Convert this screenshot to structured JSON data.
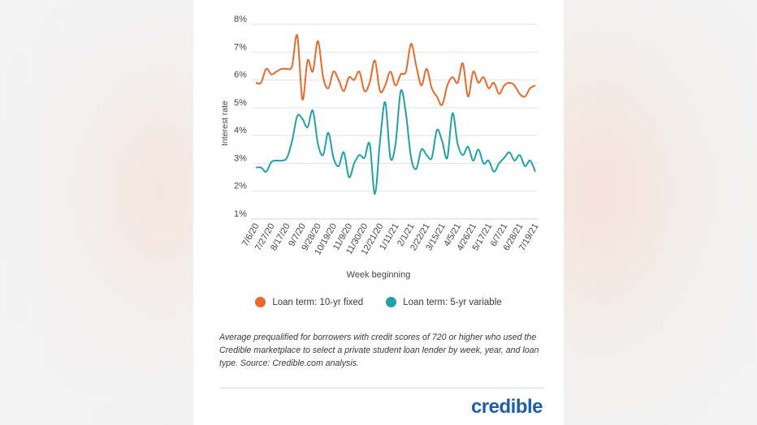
{
  "chart_data": {
    "type": "line",
    "title": "",
    "xlabel": "Week beginning",
    "ylabel": "Interest rate",
    "ylim": [
      1,
      8
    ],
    "yticks": [
      "1%",
      "2%",
      "3%",
      "4%",
      "5%",
      "6%",
      "7%",
      "8%"
    ],
    "grid": true,
    "legend_position": "bottom",
    "x": [
      "7/6/20",
      "7/13/20",
      "7/20/20",
      "7/27/20",
      "8/3/20",
      "8/10/20",
      "8/17/20",
      "8/24/20",
      "8/31/20",
      "9/7/20",
      "9/14/20",
      "9/21/20",
      "9/28/20",
      "10/5/20",
      "10/12/20",
      "10/19/20",
      "10/26/20",
      "11/2/20",
      "11/9/20",
      "11/16/20",
      "11/23/20",
      "11/30/20",
      "12/7/20",
      "12/14/20",
      "12/21/20",
      "12/28/20",
      "1/4/21",
      "1/11/21",
      "1/18/21",
      "1/25/21",
      "2/1/21",
      "2/8/21",
      "2/15/21",
      "2/22/21",
      "3/1/21",
      "3/8/21",
      "3/15/21",
      "3/22/21",
      "3/29/21",
      "4/5/21",
      "4/12/21",
      "4/19/21",
      "4/26/21",
      "5/3/21",
      "5/10/21",
      "5/17/21",
      "5/24/21",
      "5/31/21",
      "6/7/21",
      "6/14/21",
      "6/21/21",
      "6/28/21",
      "7/5/21",
      "7/12/21",
      "7/19/21"
    ],
    "x_tick_labels": [
      "7/6/20",
      "7/27/20",
      "8/17/20",
      "9/7/20",
      "9/28/20",
      "10/19/20",
      "11/9/20",
      "11/30/20",
      "12/21/20",
      "1/11/21",
      "2/1/21",
      "2/22/21",
      "3/15/21",
      "4/5/21",
      "4/26/21",
      "5/17/21",
      "6/7/21",
      "6/28/21",
      "7/19/21"
    ],
    "series": [
      {
        "name": "Loan term: 10-yr fixed",
        "color": "#e8692c",
        "values": [
          5.9,
          5.9,
          6.4,
          6.2,
          6.3,
          6.4,
          6.4,
          6.5,
          7.6,
          5.3,
          6.7,
          6.3,
          7.4,
          6.1,
          5.7,
          6.3,
          6.0,
          5.6,
          6.1,
          6.0,
          6.3,
          5.6,
          5.9,
          6.7,
          5.6,
          5.8,
          6.3,
          5.8,
          6.2,
          6.3,
          7.3,
          6.5,
          5.8,
          6.4,
          5.7,
          5.4,
          5.1,
          5.8,
          6.1,
          5.9,
          6.6,
          5.4,
          6.3,
          5.9,
          6.1,
          5.7,
          5.9,
          5.5,
          5.8,
          5.9,
          5.8,
          5.5,
          5.4,
          5.7,
          5.8
        ]
      },
      {
        "name": "Loan term: 5-yr variable",
        "color": "#22a0aa",
        "values": [
          2.85,
          2.85,
          2.7,
          3.05,
          3.1,
          3.1,
          3.2,
          3.8,
          4.7,
          4.6,
          4.3,
          4.9,
          3.7,
          3.3,
          4.1,
          3.2,
          2.9,
          3.4,
          2.5,
          3.0,
          3.3,
          3.2,
          3.7,
          1.9,
          3.8,
          5.2,
          3.2,
          3.7,
          5.6,
          4.8,
          3.2,
          2.8,
          3.5,
          3.3,
          3.2,
          4.2,
          3.8,
          3.2,
          4.8,
          3.7,
          3.3,
          3.6,
          3.1,
          3.5,
          3.0,
          3.1,
          2.7,
          3.0,
          3.2,
          3.4,
          3.1,
          3.3,
          2.9,
          3.1,
          2.7
        ]
      }
    ]
  },
  "caption": "Average prequalified for borrowers with credit scores of 720 or higher who used the Credible marketplace to select a private student loan lender by week, year, and loan type. Source: Credible.com analysis.",
  "logo_text": "credible"
}
